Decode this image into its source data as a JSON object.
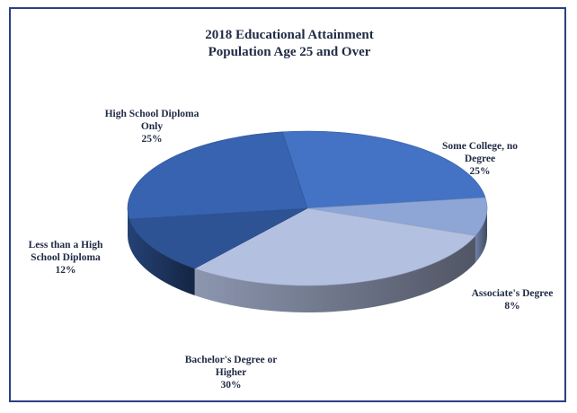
{
  "chart_data": {
    "type": "pie",
    "title": "2018 Educational Attainment",
    "subtitle": "Population Age 25 and Over",
    "slices": [
      {
        "label": [
          "Some College, no",
          "Degree"
        ],
        "percent_label": "25%",
        "value": 25,
        "color": "#4472c4"
      },
      {
        "label": [
          "Associate's Degree"
        ],
        "percent_label": "8%",
        "value": 8,
        "color": "#8ea6d6"
      },
      {
        "label": [
          "Bachelor's Degree or",
          "Higher"
        ],
        "percent_label": "30%",
        "value": 30,
        "color": "#b4c0e0"
      },
      {
        "label": [
          "Less than a High",
          "School Diploma"
        ],
        "percent_label": "12%",
        "value": 12,
        "color": "#2e5395"
      },
      {
        "label": [
          "High School Diploma",
          "Only"
        ],
        "percent_label": "25%",
        "value": 25,
        "color": "#3763b0"
      }
    ]
  }
}
